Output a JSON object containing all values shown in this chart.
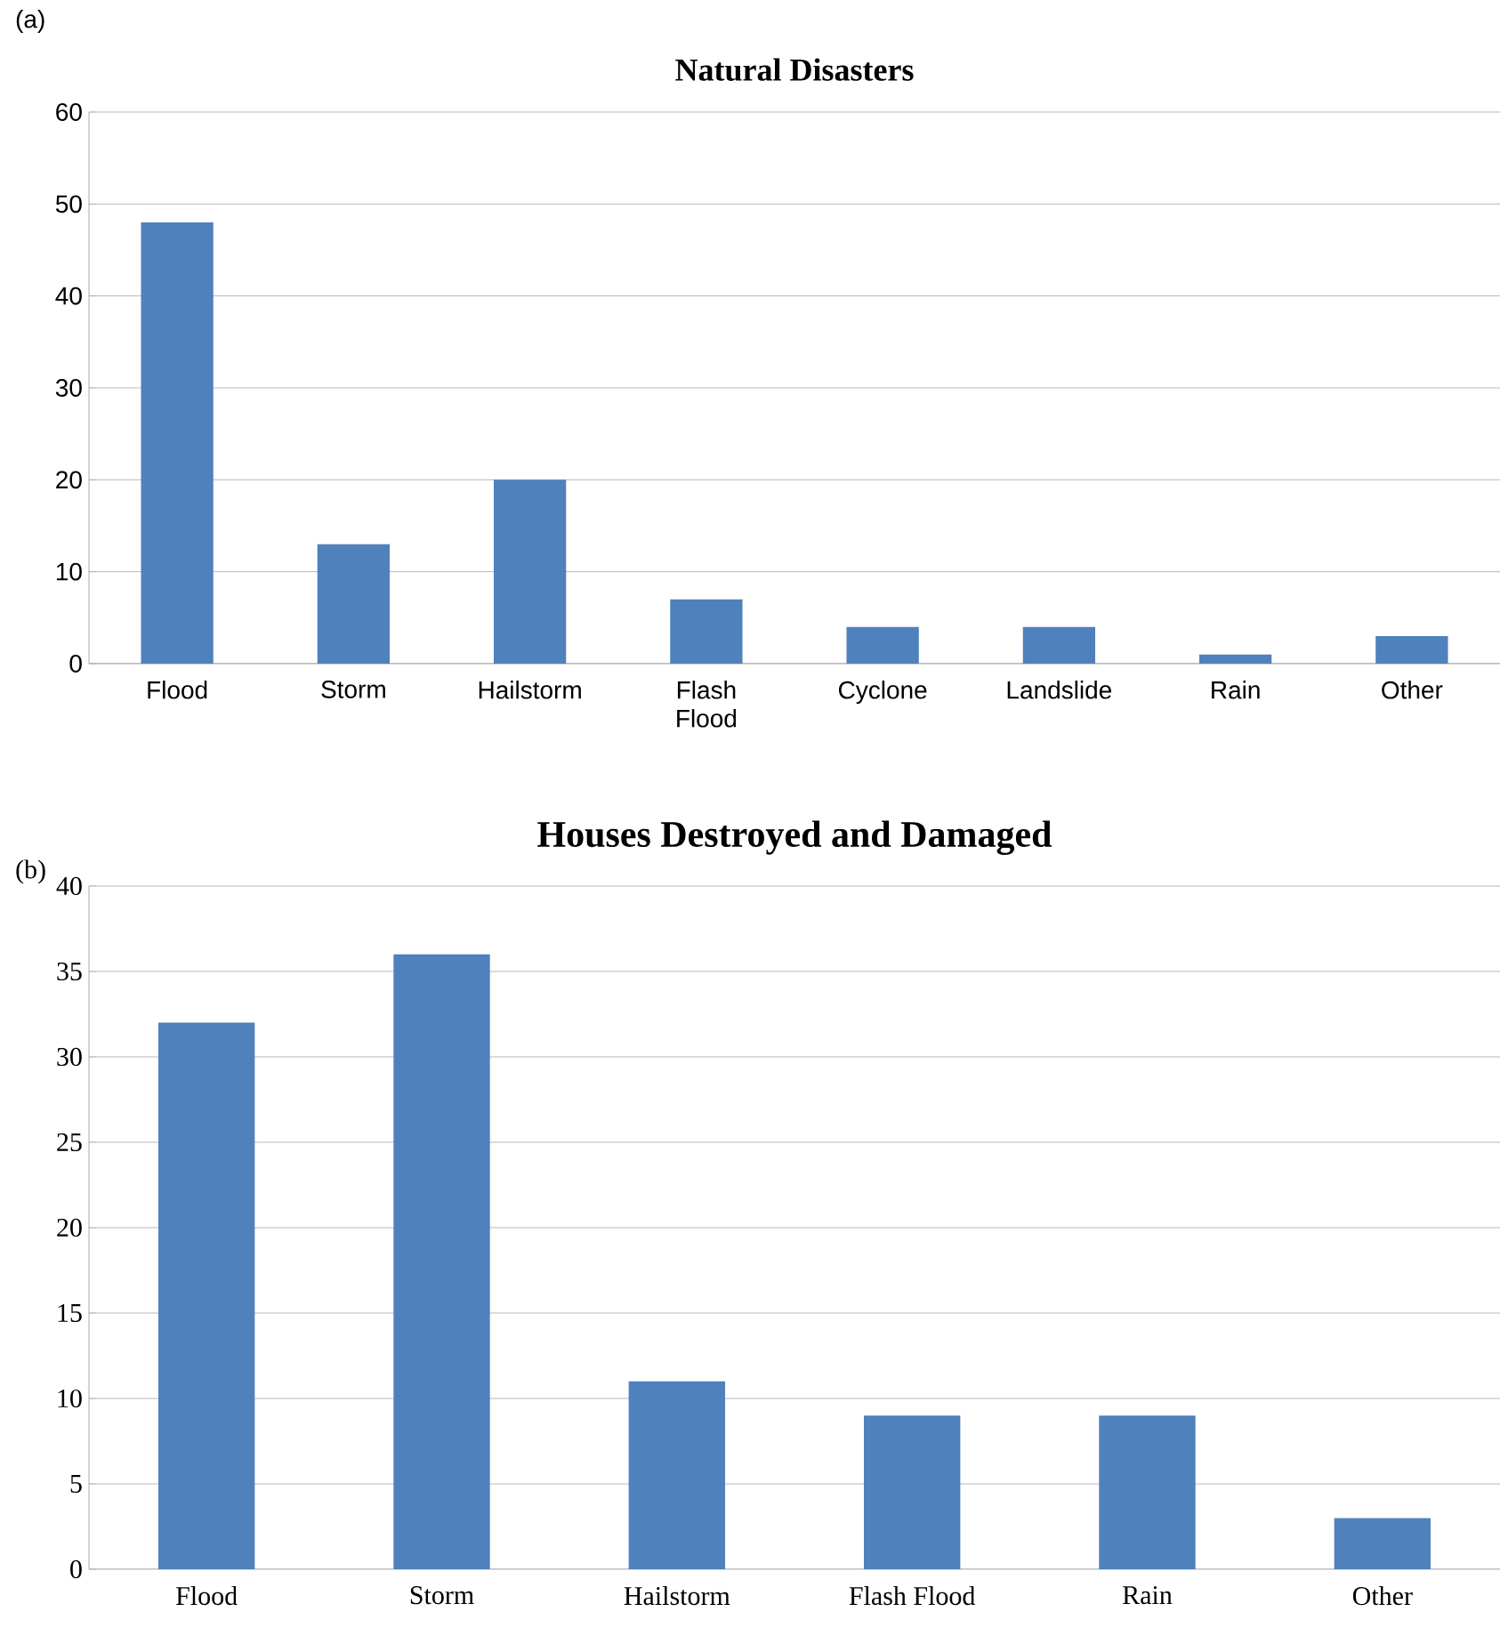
{
  "chart_data": [
    {
      "type": "bar",
      "title": "Natural Disasters",
      "annotations": [
        "(a)"
      ],
      "categories": [
        "Flood",
        "Storm",
        "Hailstorm",
        "Flash Flood",
        "Cyclone",
        "Landslide",
        "Rain",
        "Other"
      ],
      "values": [
        48,
        13,
        20,
        7,
        4,
        4,
        1,
        3
      ],
      "color": "#4f81bd",
      "ylim": [
        0,
        60
      ],
      "yticks": [
        0,
        10,
        20,
        30,
        40,
        50,
        60
      ],
      "grid": "y"
    },
    {
      "type": "bar",
      "title": "Houses Destroyed and Damaged",
      "annotations": [
        "(b)"
      ],
      "categories": [
        "Flood",
        "Storm",
        "Hailstorm",
        "Flash Flood",
        "Rain",
        "Other"
      ],
      "values": [
        32,
        36,
        11,
        9,
        9,
        3
      ],
      "color": "#4f81bd",
      "ylim": [
        0,
        40
      ],
      "yticks": [
        0,
        5,
        10,
        15,
        20,
        25,
        30,
        35,
        40
      ],
      "grid": "y"
    }
  ]
}
